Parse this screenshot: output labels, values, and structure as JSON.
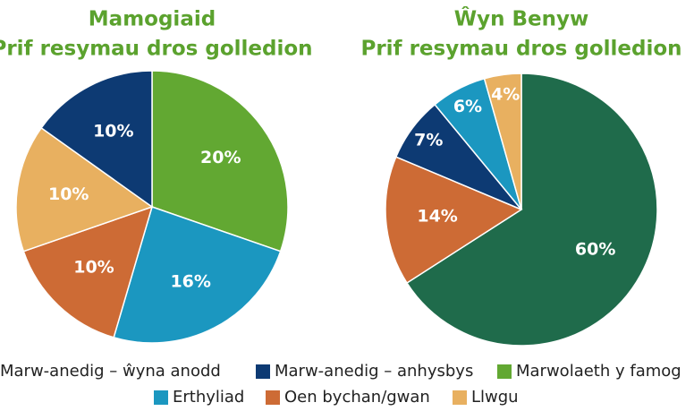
{
  "chart_data": [
    {
      "type": "pie",
      "title": "Mamogiaid",
      "subtitle": "Prif resymau dros golledion",
      "categories": [
        "Marwolaeth y famog",
        "Erthyliad",
        "Oen bychan/gwan",
        "Llwgu",
        "Marw-anedig – anhysbys"
      ],
      "values": [
        20,
        16,
        10,
        10,
        10
      ],
      "value_labels": [
        "20%",
        "16%",
        "10%",
        "10%",
        "10%"
      ],
      "colors": [
        "#62a832",
        "#1b97c0",
        "#cd6b35",
        "#e8b060",
        "#0d3a73"
      ]
    },
    {
      "type": "pie",
      "title": "Ŵyn Benyw",
      "subtitle": "Prif resymau dros golledion",
      "categories": [
        "Marw-anedig – ŵyna anodd",
        "Oen bychan/gwan",
        "Marw-anedig – anhysbys",
        "Erthyliad",
        "Llwgu"
      ],
      "values": [
        60,
        14,
        7,
        6,
        4
      ],
      "value_labels": [
        "60%",
        "14%",
        "7%",
        "6%",
        "4%"
      ],
      "colors": [
        "#1f6b4b",
        "#cd6b35",
        "#0d3a73",
        "#1b97c0",
        "#e8b060"
      ]
    }
  ],
  "legend": [
    {
      "name": "Marw-anedig – ŵyna anodd",
      "color": "#1f6b4b"
    },
    {
      "name": "Marw-anedig – anhysbys",
      "color": "#0d3a73"
    },
    {
      "name": "Marwolaeth y famog",
      "color": "#62a832"
    },
    {
      "name": "Erthyliad",
      "color": "#1b97c0"
    },
    {
      "name": "Oen bychan/gwan",
      "color": "#cd6b35"
    },
    {
      "name": "Llwgu",
      "color": "#e8b060"
    }
  ]
}
